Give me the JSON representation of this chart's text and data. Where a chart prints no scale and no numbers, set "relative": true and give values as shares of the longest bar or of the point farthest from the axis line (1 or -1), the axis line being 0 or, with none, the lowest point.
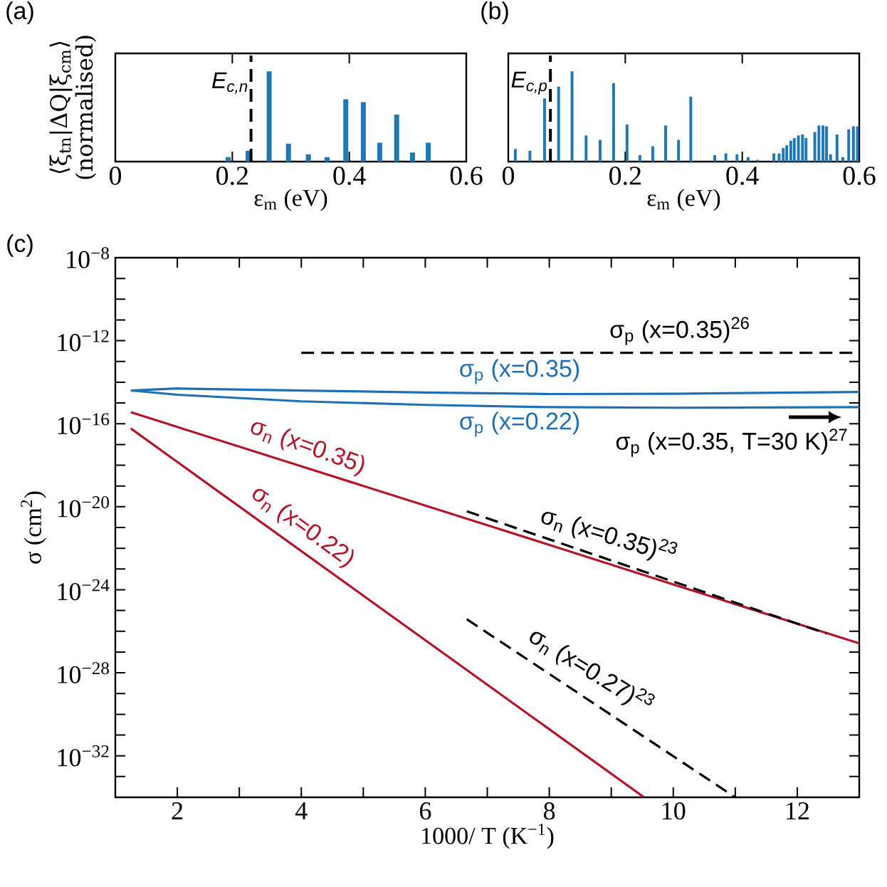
{
  "chart_data": [
    {
      "type": "bar",
      "relative": true,
      "color": "#1f77b4",
      "xlim": [
        0,
        0.6
      ],
      "xticks": [
        0,
        0.2,
        0.4,
        0.6
      ],
      "tick_labels": "x",
      "xlabel": "ε$_{m}$ (eV)",
      "ylabel": "⟨ξ$_{tn}$|ΔQ|ξ$_{cm}$⟩ (normalised)",
      "x": [
        0.193,
        0.227,
        0.263,
        0.296,
        0.33,
        0.362,
        0.394,
        0.424,
        0.452,
        0.481,
        0.508,
        0.535
      ],
      "values": [
        0.05,
        0.12,
        1,
        0.2,
        0.08,
        0.05,
        0.69,
        0.66,
        0.21,
        0.52,
        0.1,
        0.21
      ],
      "ref_lines": [
        {
          "axis": "x",
          "value": 0.232,
          "label": "E$_{c,n}$",
          "line_style": "dashed",
          "color": "#000000"
        }
      ],
      "annotations": [
        "(a)"
      ]
    },
    {
      "type": "bar",
      "relative": true,
      "color": "#1f77b4",
      "xlim": [
        0,
        0.6
      ],
      "xticks": [
        0,
        0.2,
        0.4,
        0.6
      ],
      "tick_labels": "x",
      "xlabel": "ε$_{m}$ (eV)",
      "x": [
        0.012,
        0.037,
        0.062,
        0.086,
        0.109,
        0.133,
        0.157,
        0.18,
        0.203,
        0.225,
        0.247,
        0.269,
        0.291,
        0.312,
        0.353,
        0.372,
        0.391,
        0.41,
        0.426,
        0.454,
        0.463,
        0.47,
        0.476,
        0.483,
        0.489,
        0.496,
        0.503,
        0.509,
        0.515,
        0.524,
        0.531,
        0.538,
        0.544,
        0.551,
        0.562,
        0.572,
        0.582,
        0.59,
        0.597
      ],
      "values": [
        0.14,
        0.12,
        0.7,
        0.83,
        1,
        0.29,
        0.24,
        0.87,
        0.41,
        0.07,
        0.17,
        0.4,
        0.24,
        0.72,
        0.07,
        0.09,
        0.08,
        0.05,
        0.02,
        0.09,
        0.09,
        0.15,
        0.18,
        0.23,
        0.26,
        0.29,
        0.3,
        0.26,
        0.01,
        0.33,
        0.4,
        0.4,
        0.39,
        0.08,
        0.3,
        0.05,
        0.36,
        0.39,
        0.39
      ],
      "ref_lines": [
        {
          "axis": "x",
          "value": 0.072,
          "label": "E$_{c,p}$",
          "line_style": "dashed",
          "color": "#000000"
        }
      ],
      "annotations": [
        "(b)"
      ]
    },
    {
      "type": "line",
      "log": "y",
      "xlim": [
        1,
        13
      ],
      "ylim": [
        1e-34,
        1e-08
      ],
      "xlabel": "1000/ T (K$^{−1}$)",
      "ylabel": "σ (cm$^{2}$)",
      "xticks": [
        2,
        {
          "value": 3,
          "label": null
        },
        4,
        {
          "value": 5,
          "label": null
        },
        6,
        {
          "value": 7,
          "label": null
        },
        8,
        {
          "value": 9,
          "label": null
        },
        10,
        {
          "value": 11,
          "label": null
        },
        12
      ],
      "yticks": [
        {
          "value": 1e-08,
          "label": "10$^{−8}$"
        },
        {
          "value": 1e-09,
          "label": null
        },
        {
          "value": 1e-10,
          "label": null
        },
        {
          "value": 1e-11,
          "label": null
        },
        {
          "value": 1e-12,
          "label": "10$^{−12}$"
        },
        {
          "value": 1e-13,
          "label": null
        },
        {
          "value": 1e-14,
          "label": null
        },
        {
          "value": 1e-15,
          "label": null
        },
        {
          "value": 1e-16,
          "label": "10$^{−16}$"
        },
        {
          "value": 1e-17,
          "label": null
        },
        {
          "value": 1e-18,
          "label": null
        },
        {
          "value": 1e-19,
          "label": null
        },
        {
          "value": 1e-20,
          "label": "10$^{−20}$"
        },
        {
          "value": 1e-21,
          "label": null
        },
        {
          "value": 1e-22,
          "label": null
        },
        {
          "value": 1e-23,
          "label": null
        },
        {
          "value": 1e-24,
          "label": "10$^{−24}$"
        },
        {
          "value": 1e-25,
          "label": null
        },
        {
          "value": 1e-26,
          "label": null
        },
        {
          "value": 1e-27,
          "label": null
        },
        {
          "value": 1e-28,
          "label": "10$^{−28}$"
        },
        {
          "value": 1e-29,
          "label": null
        },
        {
          "value": 1e-30,
          "label": null
        },
        {
          "value": 1e-31,
          "label": null
        },
        {
          "value": 1e-32,
          "label": "10$^{−32}$"
        },
        {
          "value": 1e-33,
          "label": null
        }
      ],
      "series": [
        {
          "name": "σ$_{p}$ (x=0.35)",
          "color": "#1f6fb4",
          "line_style": "solid",
          "x": [
            1.25,
            2,
            4,
            6,
            8,
            10,
            13
          ],
          "values": [
            4e-15,
            5e-15,
            4e-15,
            3.2e-15,
            2.7e-15,
            2.8e-15,
            3.4e-15
          ]
        },
        {
          "name": "σ$_{p}$ (x=0.22)",
          "color": "#1f6fb4",
          "line_style": "solid",
          "x": [
            1.25,
            2,
            4,
            6,
            8,
            10,
            13
          ],
          "values": [
            4e-15,
            2.5e-15,
            1.2e-15,
            8.1e-16,
            6.3e-16,
            5.9e-16,
            6.3e-16
          ]
        },
        {
          "name": "σ$_{n}$ (x=0.35)",
          "color": "#b5152b",
          "line_style": "solid",
          "x": [
            1.25,
            4,
            7,
            10,
            13
          ],
          "values": [
            3.6e-16,
            8.9e-19,
            1.3e-21,
            1.8e-24,
            2.6e-27
          ]
        },
        {
          "name": "σ$_{n}$ (x=0.22)",
          "color": "#b5152b",
          "line_style": "solid",
          "x": [
            1.25,
            5,
            9.53
          ],
          "values": [
            5.9e-17,
            5.2e-25,
            1e-34
          ]
        },
        {
          "name": "σ$_{p}$ (x=0.35)$^{26}$",
          "color": "#000000",
          "line_style": "dashed",
          "x": [
            4,
            13
          ],
          "values": [
            2.6e-13,
            2.6e-13
          ]
        },
        {
          "name": "σ$_{n}$ (x=0.35)$^{23}$",
          "color": "#000000",
          "line_style": "dashed",
          "x": [
            6.67,
            12.47
          ],
          "values": [
            6e-21,
            7.8e-27
          ]
        },
        {
          "name": "σ$_{n}$ (x=0.27)$^{23}$",
          "color": "#000000",
          "line_style": "dashed",
          "x": [
            6.67,
            11.0
          ],
          "values": [
            3.8e-26,
            1e-34
          ]
        }
      ],
      "annotations": [
        "(c)",
        "σ$_{p}$ (x=0.35, T=30 K)$^{27}$"
      ]
    }
  ]
}
